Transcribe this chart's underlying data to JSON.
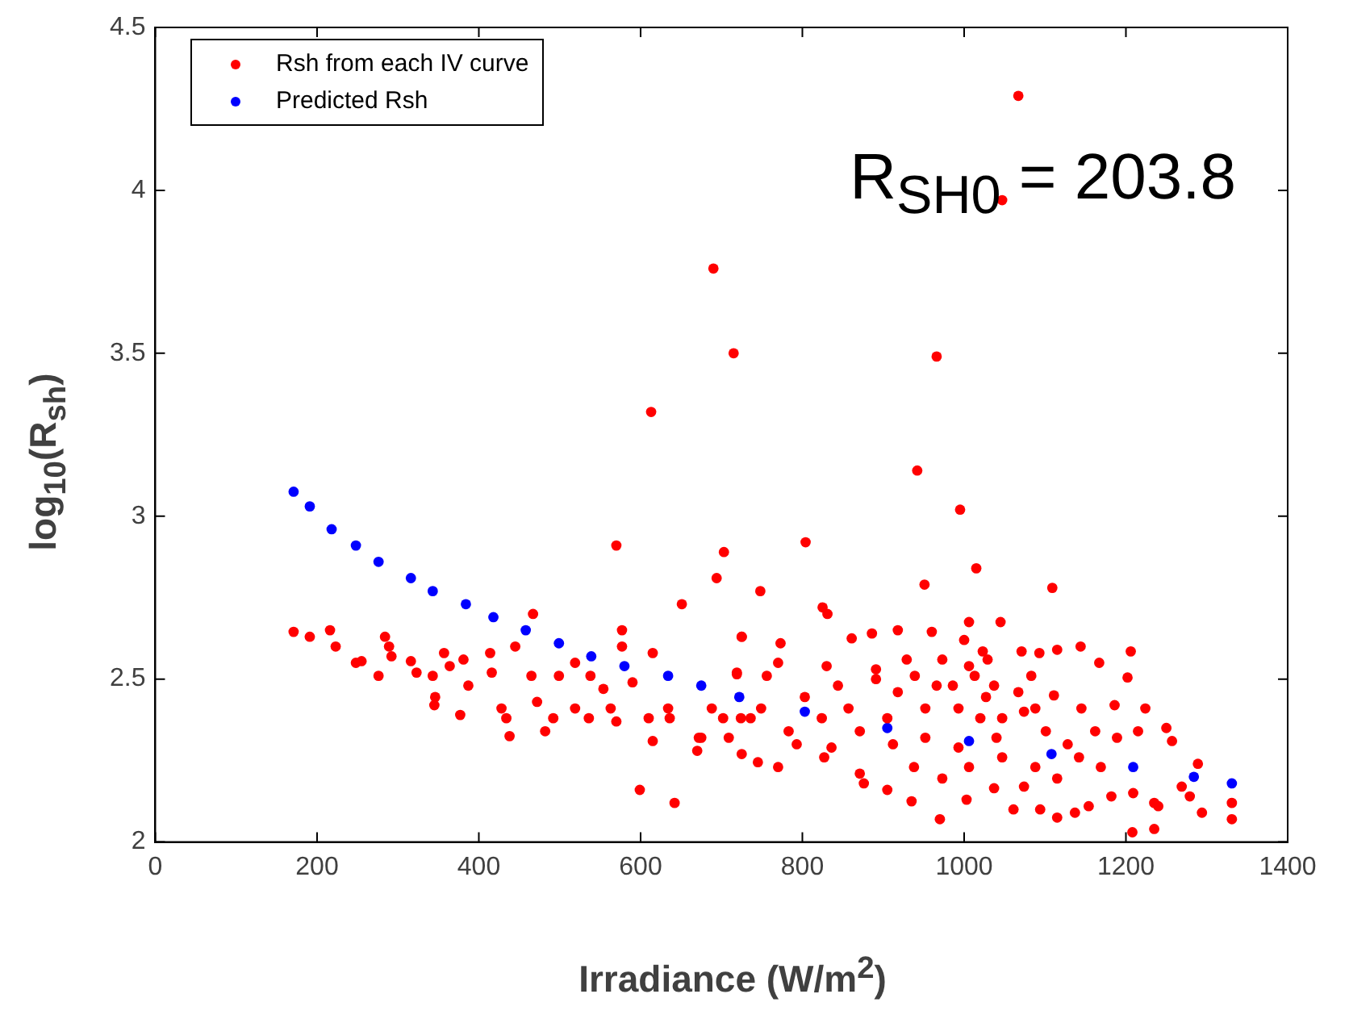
{
  "chart_data": {
    "type": "scatter",
    "xlabel": "Irradiance (W/m$^{2}$)",
    "ylabel": "log$_{10}$(R$_{sh}$)",
    "xlim": [
      0,
      1400
    ],
    "xticks": [
      0,
      200,
      400,
      600,
      800,
      1000,
      1200,
      1400
    ],
    "ylim": [
      2,
      4.5
    ],
    "yticks": [
      2,
      2.5,
      3,
      3.5,
      4,
      4.5
    ],
    "grid": false,
    "legend": "top left",
    "marker": "circle",
    "annotations": [
      "R$_{SH0}$ = 203.8"
    ],
    "series": [
      {
        "name": "Rsh from each IV curve",
        "color": "#ff0000",
        "x": [
          1067,
          1047,
          966,
          613,
          570,
          942,
          995,
          703,
          804,
          694,
          748,
          1015,
          951,
          1109,
          690,
          715,
          599,
          642,
          970,
          1208,
          1331,
          1331,
          1294,
          1235,
          171,
          191,
          216,
          223,
          248,
          255,
          276,
          284,
          289,
          292,
          316,
          323,
          343,
          346,
          345,
          357,
          364,
          377,
          381,
          387,
          414,
          416,
          428,
          434,
          438,
          445,
          467,
          465,
          472,
          482,
          492,
          499,
          519,
          519,
          536,
          538,
          554,
          563,
          570,
          577,
          577,
          590,
          610,
          615,
          615,
          634,
          636,
          670,
          672,
          719,
          725,
          724,
          725,
          651,
          725,
          773,
          825,
          831,
          861,
          886,
          918,
          960,
          1000,
          1006,
          1045,
          1115,
          1144,
          1206,
          1202,
          1167,
          1186,
          1224,
          1250,
          1257,
          1289,
          1269,
          1279,
          1209,
          1235,
          1240,
          1182,
          1154,
          1137,
          1115,
          1094,
          1061,
          1003,
          935,
          905,
          876,
          827,
          770,
          745,
          709,
          675,
          688,
          719,
          756,
          770,
          830,
          891,
          929,
          973,
          1023,
          1029,
          1071,
          1093,
          1083,
          1111,
          1145,
          1162,
          1189,
          1215,
          1169,
          1115,
          1074,
          1037,
          973,
          938,
          871,
          836,
          793,
          736,
          803,
          844,
          891,
          918,
          952,
          986,
          1013,
          1027,
          1047,
          1074,
          1101,
          1128,
          1040,
          993,
          952,
          912,
          871,
          905,
          857,
          824,
          783,
          749,
          702,
          1006,
          1047,
          1088,
          1142,
          993,
          1020,
          966,
          939,
          1006,
          1037,
          1067,
          1088
        ],
        "values": [
          4.29,
          3.97,
          3.49,
          3.32,
          2.91,
          3.14,
          3.02,
          2.89,
          2.92,
          2.81,
          2.77,
          2.84,
          2.79,
          2.78,
          3.76,
          3.5,
          2.16,
          2.12,
          2.07,
          2.03,
          2.07,
          2.12,
          2.09,
          2.04,
          2.645,
          2.63,
          2.65,
          2.6,
          2.55,
          2.555,
          2.51,
          2.63,
          2.6,
          2.57,
          2.555,
          2.52,
          2.51,
          2.445,
          2.42,
          2.58,
          2.54,
          2.39,
          2.56,
          2.48,
          2.58,
          2.52,
          2.41,
          2.38,
          2.325,
          2.6,
          2.7,
          2.51,
          2.43,
          2.34,
          2.38,
          2.51,
          2.55,
          2.41,
          2.38,
          2.51,
          2.47,
          2.41,
          2.37,
          2.65,
          2.6,
          2.49,
          2.38,
          2.58,
          2.31,
          2.41,
          2.38,
          2.28,
          2.32,
          2.52,
          2.63,
          2.38,
          2.27,
          2.73,
          2.63,
          2.61,
          2.72,
          2.7,
          2.625,
          2.64,
          2.65,
          2.645,
          2.62,
          2.675,
          2.675,
          2.59,
          2.6,
          2.585,
          2.505,
          2.55,
          2.42,
          2.41,
          2.35,
          2.31,
          2.24,
          2.17,
          2.14,
          2.15,
          2.12,
          2.11,
          2.14,
          2.11,
          2.09,
          2.075,
          2.1,
          2.1,
          2.13,
          2.125,
          2.16,
          2.18,
          2.26,
          2.23,
          2.245,
          2.32,
          2.32,
          2.41,
          2.515,
          2.51,
          2.55,
          2.54,
          2.53,
          2.56,
          2.56,
          2.585,
          2.56,
          2.585,
          2.58,
          2.51,
          2.45,
          2.41,
          2.34,
          2.32,
          2.34,
          2.23,
          2.195,
          2.17,
          2.165,
          2.195,
          2.23,
          2.21,
          2.29,
          2.3,
          2.38,
          2.445,
          2.48,
          2.5,
          2.46,
          2.41,
          2.48,
          2.51,
          2.445,
          2.38,
          2.4,
          2.34,
          2.3,
          2.32,
          2.29,
          2.32,
          2.3,
          2.34,
          2.38,
          2.41,
          2.38,
          2.34,
          2.41,
          2.38,
          2.23,
          2.26,
          2.23,
          2.26,
          2.41,
          2.38,
          2.48,
          2.51,
          2.54,
          2.48,
          2.46,
          2.41
        ]
      },
      {
        "name": "Predicted Rsh",
        "color": "#0000ff",
        "x": [
          171,
          191,
          218,
          248,
          276,
          316,
          343,
          384,
          418,
          458,
          499,
          539,
          580,
          634,
          675,
          722,
          803,
          905,
          1006,
          1108,
          1209,
          1284,
          1331
        ],
        "values": [
          3.075,
          3.03,
          2.96,
          2.91,
          2.86,
          2.81,
          2.77,
          2.73,
          2.69,
          2.65,
          2.61,
          2.57,
          2.54,
          2.51,
          2.48,
          2.445,
          2.4,
          2.35,
          2.31,
          2.27,
          2.23,
          2.2,
          2.18
        ]
      }
    ]
  }
}
